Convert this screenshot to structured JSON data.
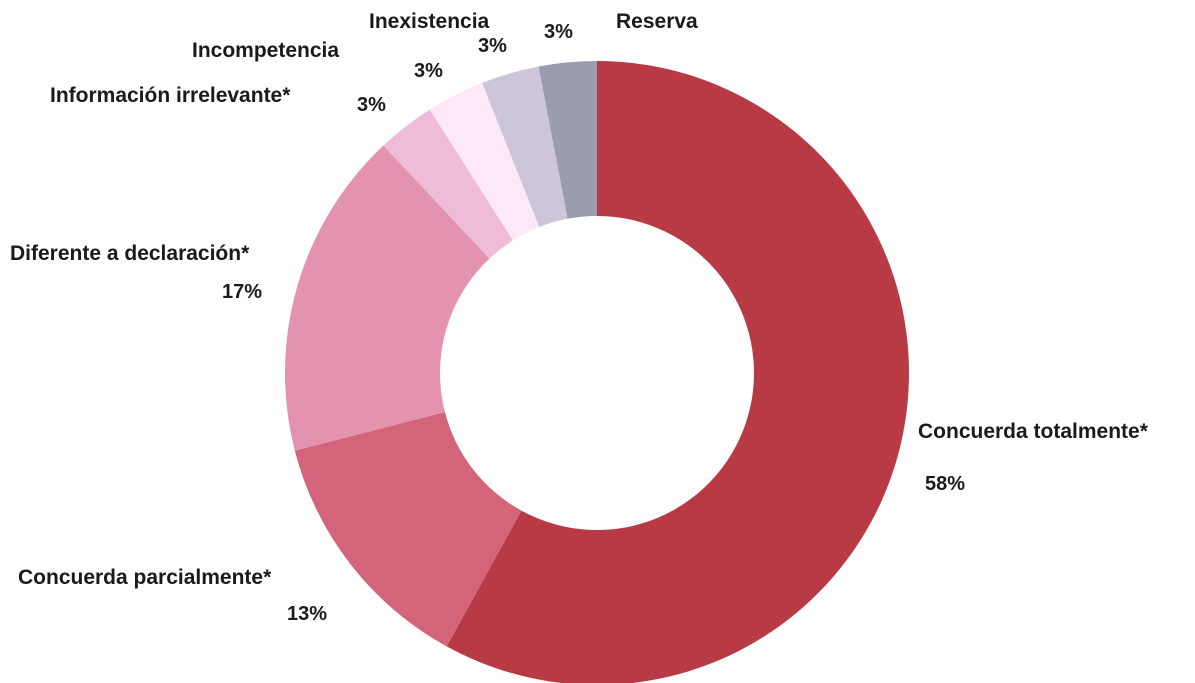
{
  "chart_data": {
    "type": "pie",
    "donut": true,
    "categories": [
      "Concuerda totalmente*",
      "Concuerda parcialmente*",
      "Diferente a declaración*",
      "Información irrelevante*",
      "Incompetencia",
      "Inexistencia",
      "Reserva"
    ],
    "values": [
      58,
      13,
      17,
      3,
      3,
      3,
      3
    ],
    "value_labels": [
      "58%",
      "13%",
      "17%",
      "3%",
      "3%",
      "3%",
      "3%"
    ],
    "colors": [
      "#b83a44",
      "#d4647a",
      "#e393b0",
      "#efbcd8",
      "#fde8f8",
      "#ccc6d8",
      "#9a9daf"
    ],
    "legend": "none"
  }
}
